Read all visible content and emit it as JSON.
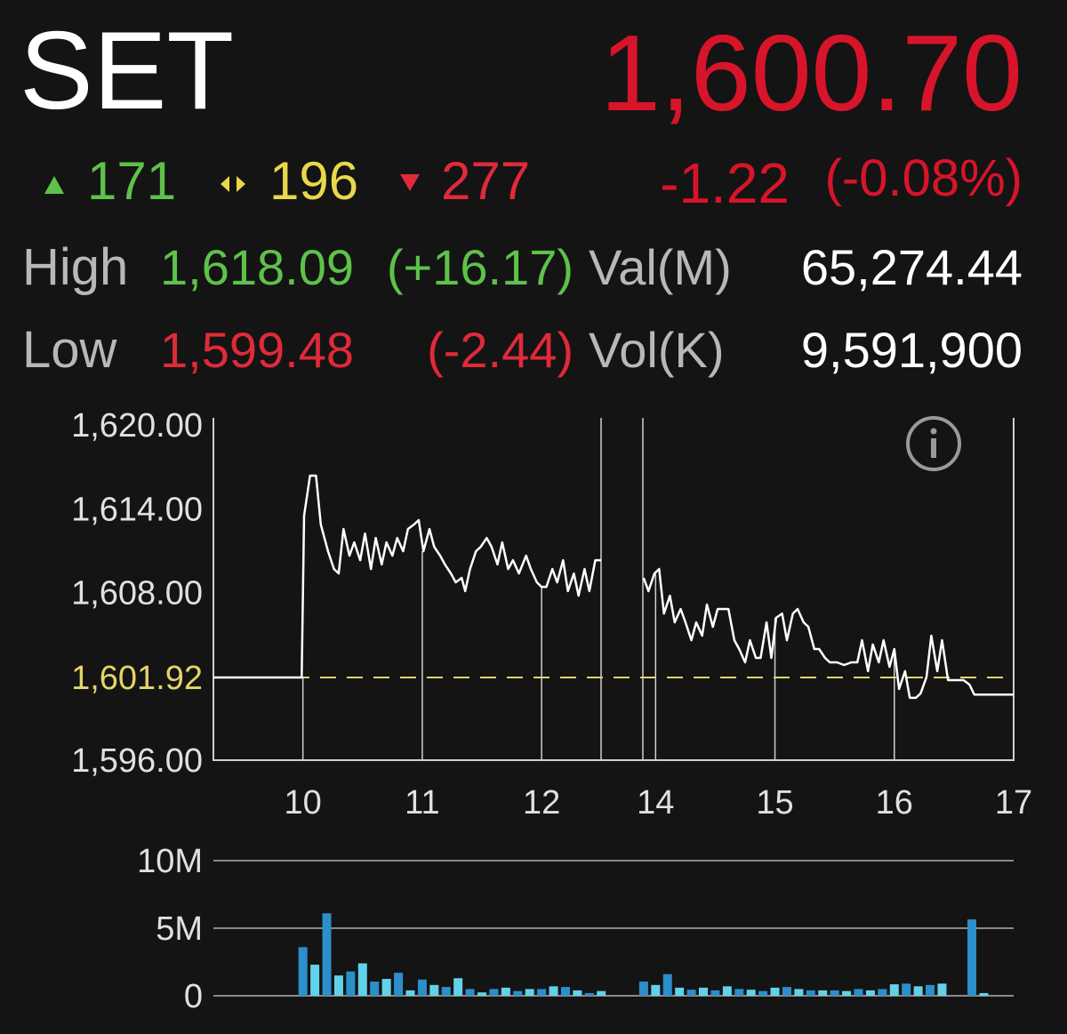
{
  "header": {
    "symbol": "SET",
    "last": "1,600.70",
    "advances": "171",
    "unchanged": "196",
    "declines": "277",
    "change": "-1.22",
    "change_pct": "(-0.08%)"
  },
  "stats": {
    "high_label": "High",
    "high": "1,618.09",
    "high_change": "(+16.17)",
    "val_label": "Val(M)",
    "val": "65,274.44",
    "low_label": "Low",
    "low": "1,599.48",
    "low_change": "(-2.44)",
    "vol_label": "Vol(K)",
    "vol": "9,591,900"
  },
  "chart_data": [
    {
      "type": "line",
      "x": [
        9.25,
        9.99,
        10.01,
        10.06,
        10.11,
        10.15,
        10.21,
        10.26,
        10.3,
        10.34,
        10.39,
        10.43,
        10.48,
        10.52,
        10.57,
        10.61,
        10.66,
        10.7,
        10.75,
        10.79,
        10.84,
        10.88,
        10.93,
        10.97,
        11.01,
        11.06,
        11.1,
        11.15,
        11.19,
        11.24,
        11.28,
        11.33,
        11.36,
        11.4,
        11.45,
        11.49,
        11.54,
        11.58,
        11.63,
        11.67,
        11.72,
        11.76,
        11.81,
        11.87,
        11.91,
        11.96,
        12.0,
        12.04,
        12.09,
        12.13,
        12.18,
        12.22,
        12.27,
        12.31,
        12.36,
        12.4,
        12.45,
        12.5,
        null,
        13.9,
        13.94,
        13.99,
        14.03,
        14.07,
        14.12,
        14.16,
        14.21,
        14.25,
        14.3,
        14.34,
        14.39,
        14.43,
        14.48,
        14.52,
        14.57,
        14.61,
        14.66,
        14.7,
        14.75,
        14.79,
        14.84,
        14.88,
        14.93,
        14.97,
        15.01,
        15.06,
        15.1,
        15.15,
        15.19,
        15.24,
        15.28,
        15.33,
        15.37,
        15.42,
        15.46,
        15.52,
        15.58,
        15.64,
        15.69,
        15.73,
        15.78,
        15.82,
        15.87,
        15.91,
        15.96,
        16.0,
        16.04,
        16.09,
        16.13,
        16.18,
        16.22,
        16.27,
        16.31,
        16.36,
        16.4,
        16.45,
        16.49,
        16.54,
        16.58,
        16.63,
        16.67,
        17.0
      ],
      "series": [
        {
          "color": "#ffffff",
          "values": [
            1601.92,
            1601.92,
            1613.51,
            1616.37,
            1616.37,
            1612.87,
            1610.96,
            1609.69,
            1609.37,
            1612.55,
            1610.64,
            1611.6,
            1610.32,
            1612.23,
            1609.69,
            1611.91,
            1610.01,
            1611.6,
            1610.64,
            1611.91,
            1610.96,
            1612.55,
            1612.87,
            1613.19,
            1610.96,
            1612.55,
            1611.28,
            1610.64,
            1610.01,
            1609.37,
            1608.73,
            1609.05,
            1608.1,
            1609.69,
            1610.96,
            1611.28,
            1611.91,
            1611.28,
            1610.01,
            1611.6,
            1609.69,
            1610.32,
            1609.37,
            1610.64,
            1609.69,
            1608.73,
            1608.41,
            1608.41,
            1609.69,
            1608.73,
            1610.32,
            1608.1,
            1609.37,
            1607.78,
            1609.69,
            1608.1,
            1610.32,
            1610.32,
            null,
            1609.05,
            1608.1,
            1609.37,
            1609.69,
            1606.5,
            1607.78,
            1605.87,
            1606.82,
            1605.87,
            1604.59,
            1605.87,
            1604.91,
            1607.14,
            1605.55,
            1606.82,
            1606.82,
            1606.82,
            1604.59,
            1603.96,
            1603.0,
            1604.59,
            1603.32,
            1603.32,
            1605.87,
            1603.32,
            1606.19,
            1606.5,
            1604.59,
            1606.5,
            1606.82,
            1605.87,
            1605.55,
            1603.96,
            1603.96,
            1603.32,
            1603.0,
            1603.0,
            1602.81,
            1603.0,
            1603.0,
            1604.59,
            1602.37,
            1604.28,
            1603.0,
            1604.59,
            1602.68,
            1603.96,
            1601.09,
            1602.37,
            1600.46,
            1600.46,
            1600.77,
            1601.95,
            1604.91,
            1602.37,
            1604.59,
            1601.73,
            1601.73,
            1601.73,
            1601.73,
            1601.41,
            1600.7,
            1600.7
          ]
        }
      ],
      "xlim": [
        9.25,
        17
      ],
      "xticks": [
        10,
        11,
        12,
        14,
        15,
        16,
        17
      ],
      "ylim": [
        1596,
        1620
      ],
      "yticks": [
        {
          "value": 1596,
          "label": "1,596.00"
        },
        {
          "value": 1608,
          "label": "1,608.00"
        },
        {
          "value": 1614,
          "label": "1,614.00"
        },
        {
          "value": 1620,
          "label": "1,620.00"
        }
      ],
      "reference": {
        "value": 1601.92,
        "label": "1,601.92",
        "color": "#e3d46a"
      }
    },
    {
      "type": "bar",
      "x": [
        10.0,
        10.1,
        10.2,
        10.3,
        10.4,
        10.5,
        10.6,
        10.7,
        10.8,
        10.9,
        11.0,
        11.1,
        11.2,
        11.3,
        11.4,
        11.5,
        11.6,
        11.7,
        11.8,
        11.9,
        12.0,
        12.1,
        12.2,
        12.3,
        12.4,
        12.5,
        13.9,
        14.0,
        14.1,
        14.2,
        14.3,
        14.4,
        14.5,
        14.6,
        14.7,
        14.8,
        14.9,
        15.0,
        15.1,
        15.2,
        15.3,
        15.4,
        15.5,
        15.6,
        15.7,
        15.8,
        15.9,
        16.0,
        16.1,
        16.2,
        16.3,
        16.4,
        16.65,
        16.75
      ],
      "values": [
        3600000,
        2300000,
        6100000,
        1500000,
        1800000,
        2400000,
        1050000,
        1250000,
        1700000,
        400000,
        1200000,
        800000,
        650000,
        1300000,
        500000,
        250000,
        500000,
        600000,
        350000,
        500000,
        500000,
        700000,
        650000,
        400000,
        200000,
        350000,
        1050000,
        800000,
        1600000,
        600000,
        450000,
        600000,
        400000,
        700000,
        500000,
        450000,
        350000,
        600000,
        650000,
        500000,
        400000,
        400000,
        400000,
        350000,
        500000,
        400000,
        500000,
        850000,
        900000,
        700000,
        800000,
        900000,
        5650000,
        200000
      ],
      "colors": [
        "#2b8fcb",
        "#62d2ea"
      ],
      "xlim": [
        9.25,
        17
      ],
      "ylim": [
        0,
        10000000
      ],
      "yticks": [
        0,
        {
          "value": 5000000,
          "label": "5M"
        },
        {
          "value": 10000000,
          "label": "10M"
        }
      ],
      "grid": true
    }
  ]
}
